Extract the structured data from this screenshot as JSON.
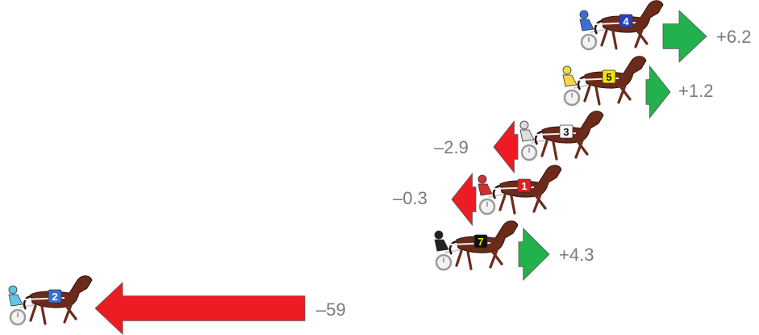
{
  "colors": {
    "gain_arrow": "#22b14c",
    "loss_arrow": "#ed1c24",
    "label_text": "#7a7a7a",
    "horse_body": "#6b2a1a",
    "sulky_wheel": "#9a9a9a"
  },
  "entries": [
    {
      "horse_number": "4",
      "change": 6.2,
      "change_label": "+6.2",
      "direction": "gain",
      "saddle_color": "#2a3fbf",
      "number_color": "#ffffff",
      "silks_color": "#3b6fd6"
    },
    {
      "horse_number": "5",
      "change": 1.2,
      "change_label": "+1.2",
      "direction": "gain",
      "saddle_color": "#f2e600",
      "number_color": "#111111",
      "silks_color": "#f2d84a"
    },
    {
      "horse_number": "3",
      "change": -2.9,
      "change_label": "–2.9",
      "direction": "loss",
      "saddle_color": "#ffffff",
      "number_color": "#111111",
      "silks_color": "#dddddd"
    },
    {
      "horse_number": "1",
      "change": -0.3,
      "change_label": "–0.3",
      "direction": "loss",
      "saddle_color": "#e02020",
      "number_color": "#ffffff",
      "silks_color": "#d03030"
    },
    {
      "horse_number": "7",
      "change": 4.3,
      "change_label": "+4.3",
      "direction": "gain",
      "saddle_color": "#111111",
      "number_color": "#f2e600",
      "silks_color": "#222222"
    },
    {
      "horse_number": "2",
      "change": -59,
      "change_label": "–59",
      "direction": "loss",
      "saddle_color": "#3b6fd6",
      "number_color": "#ffffff",
      "silks_color": "#5fc6e8"
    }
  ]
}
